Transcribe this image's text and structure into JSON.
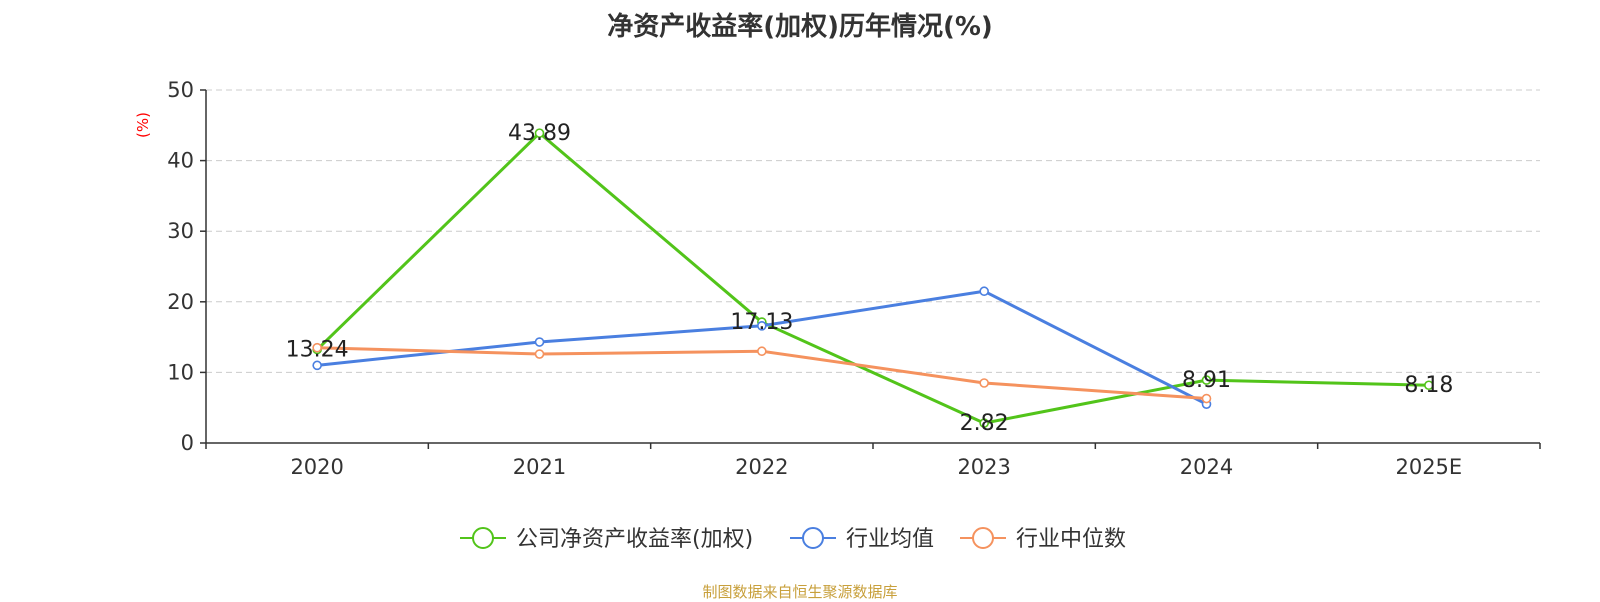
{
  "chart_data": {
    "type": "line",
    "title": "净资产收益率(加权)历年情况(%)",
    "ylabel": "(%)",
    "xlabel": "",
    "categories": [
      "2020",
      "2021",
      "2022",
      "2023",
      "2024",
      "2025E"
    ],
    "ylim": [
      0,
      50
    ],
    "yticks": [
      0,
      10,
      20,
      30,
      40,
      50
    ],
    "grid": true,
    "legend_position": "bottom-center",
    "series": [
      {
        "name": "公司净资产收益率(加权)",
        "color": "#52c41a",
        "values": [
          13.24,
          43.89,
          17.13,
          2.82,
          8.91,
          8.18
        ],
        "labels": [
          "13.24",
          "43.89",
          "17.13",
          "2.82",
          "8.91",
          "8.18"
        ]
      },
      {
        "name": "行业均值",
        "color": "#4a7fe0",
        "values": [
          11.0,
          14.3,
          16.6,
          21.5,
          5.5,
          null
        ]
      },
      {
        "name": "行业中位数",
        "color": "#f5925e",
        "values": [
          13.5,
          12.6,
          13.0,
          8.5,
          6.3,
          null
        ]
      }
    ]
  },
  "footer": {
    "source": "制图数据来自恒生聚源数据库"
  },
  "colors": {
    "axis": "#333333",
    "grid": "#cccccc",
    "ylabel": "#ff0000",
    "source": "#c8a03c"
  }
}
